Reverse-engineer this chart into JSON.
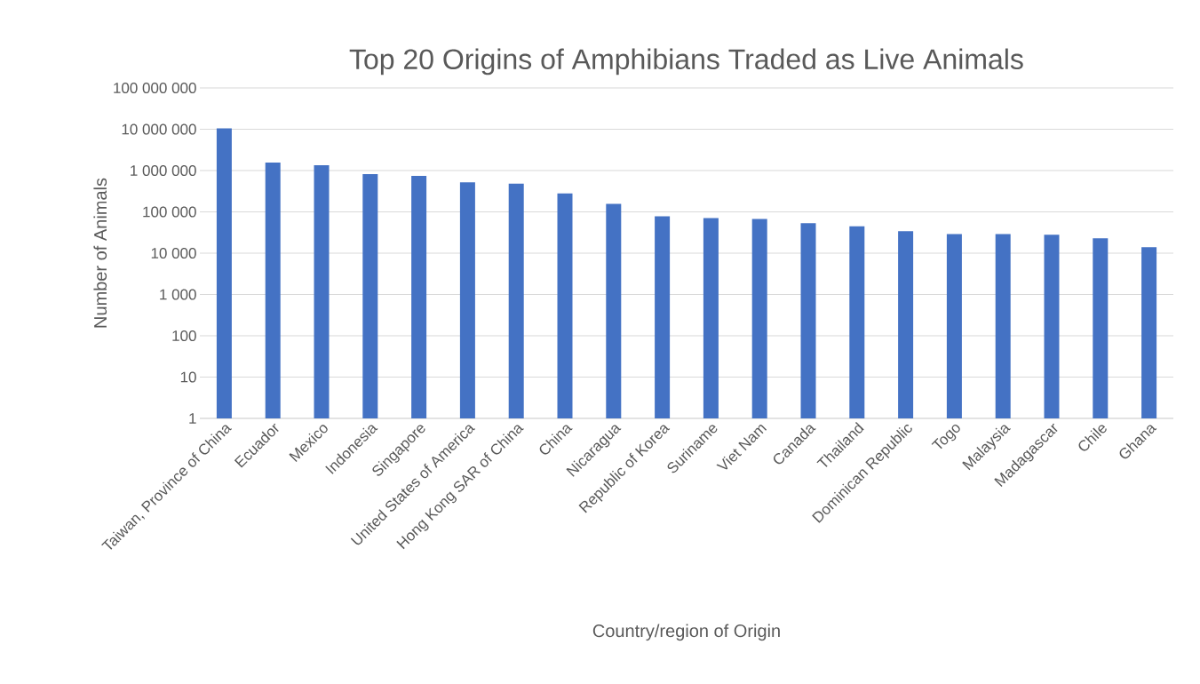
{
  "chart_data": {
    "type": "bar",
    "title": "Top 20 Origins of Amphibians Traded as Live Animals",
    "xlabel": "Country/region of Origin",
    "ylabel": "Number of Animals",
    "categories": [
      "Taiwan, Province of China",
      "Ecuador",
      "Mexico",
      "Indonesia",
      "Singapore",
      "United States of America",
      "Hong Kong SAR of China",
      "China",
      "Nicaragua",
      "Republic of Korea",
      "Suriname",
      "Viet Nam",
      "Canada",
      "Thailand",
      "Dominican Republic",
      "Togo",
      "Malaysia",
      "Madagascar",
      "Chile",
      "Ghana"
    ],
    "values": [
      10500000,
      1560000,
      1350000,
      820000,
      740000,
      520000,
      480000,
      280000,
      156000,
      78000,
      71000,
      67000,
      53000,
      45000,
      34000,
      29000,
      29000,
      28000,
      23000,
      14000
    ],
    "color": "#4472c4",
    "log": true,
    "grid": "y",
    "ylim": [
      1,
      100000000
    ],
    "yticks": [
      {
        "value": 1,
        "label": "1"
      },
      {
        "value": 10,
        "label": "10"
      },
      {
        "value": 100,
        "label": "100"
      },
      {
        "value": 1000,
        "label": "1 000"
      },
      {
        "value": 10000,
        "label": "10 000"
      },
      {
        "value": 100000,
        "label": "100 000"
      },
      {
        "value": 1000000,
        "label": "1 000 000"
      },
      {
        "value": 10000000,
        "label": "10 000 000"
      },
      {
        "value": 100000000,
        "label": "100 000 000"
      }
    ]
  }
}
